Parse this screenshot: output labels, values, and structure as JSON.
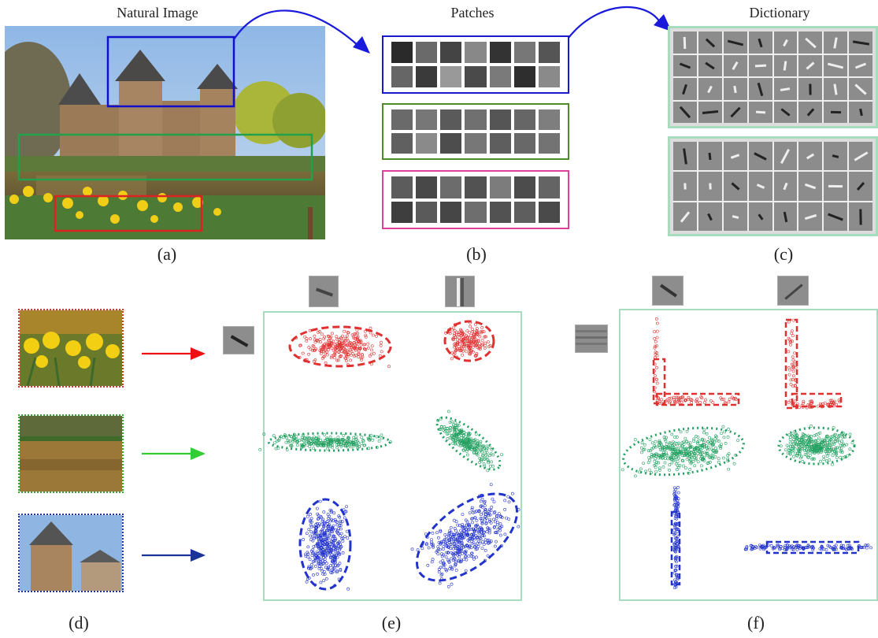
{
  "headers": {
    "natural_image": "Natural Image",
    "patches": "Patches",
    "dictionary": "Dictionary"
  },
  "captions": {
    "a": "(a)",
    "b": "(b)",
    "c": "(c)",
    "d": "(d)",
    "e": "(e)",
    "f": "(f)"
  },
  "colors": {
    "sky_region": "#1010cc",
    "water_region": "#23a04a",
    "flower_region": "#dd2222",
    "patch_box_blue": "#1a1acc",
    "patch_box_green": "#4f8a2b",
    "patch_box_pink": "#e0409a",
    "frame_green": "#a8dcbf",
    "red_arrow": "#ee1111",
    "green_arrow": "#33cc33",
    "blue_arrow": "#1a3399",
    "red_cluster": "#e03030",
    "green_cluster": "#22a060",
    "blue_cluster": "#2233cc"
  },
  "icons": [
    "daffodil-thumbnail",
    "pond-thumbnail",
    "tower-thumbnail",
    "dictionary-atom"
  ]
}
